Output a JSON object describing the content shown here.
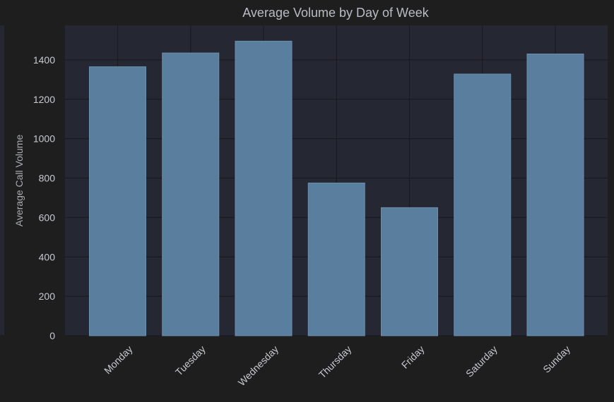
{
  "chart_data": {
    "type": "bar",
    "title": "Average Volume by Day of Week",
    "xlabel": "",
    "ylabel": "Average Call Volume",
    "categories": [
      "Monday",
      "Tuesday",
      "Wednesday",
      "Thursday",
      "Friday",
      "Saturday",
      "Sunday"
    ],
    "values": [
      1365,
      1435,
      1495,
      775,
      650,
      1328,
      1430
    ],
    "ylim": [
      0,
      1575
    ],
    "yticks": [
      0,
      200,
      400,
      600,
      800,
      1000,
      1200,
      1400
    ],
    "grid": true,
    "legend": "none",
    "colors": {
      "bar": "#5a7f9e",
      "bar_edge": "#6b8fae",
      "plot_background": "#252732",
      "figure_background": "#1e1e1f",
      "grid": "#171820"
    }
  }
}
